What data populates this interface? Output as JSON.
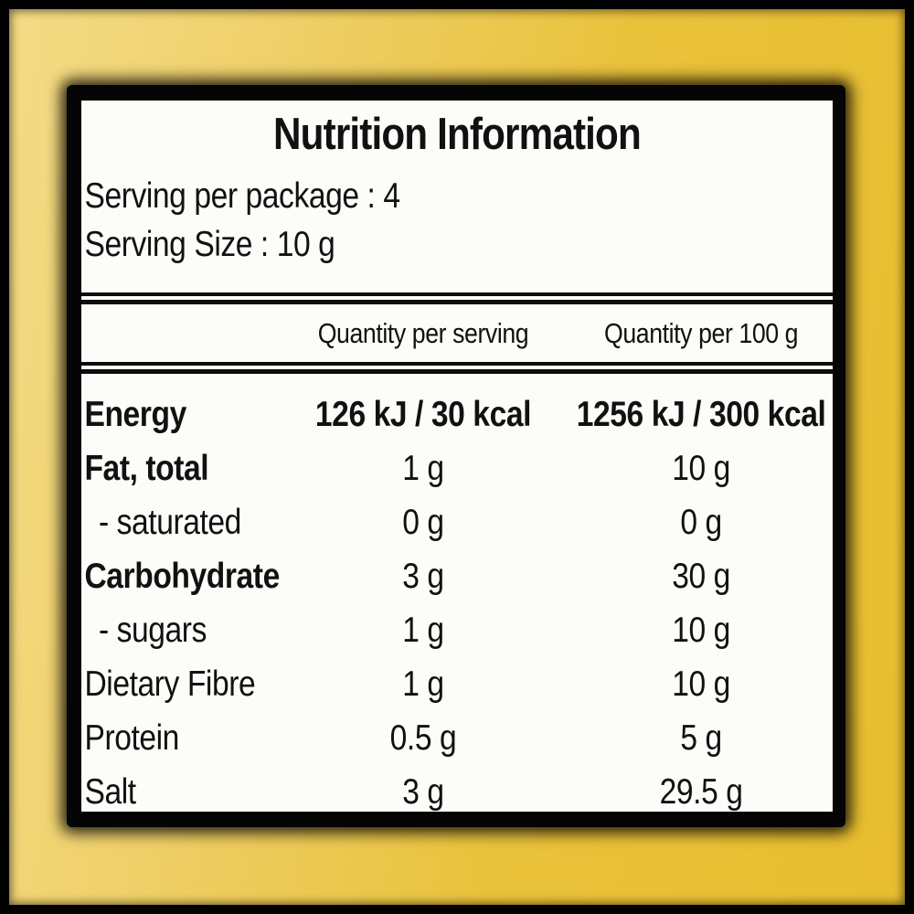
{
  "panel": {
    "title": "Nutrition Information",
    "serving_lines": [
      "Serving per package : 4",
      "Serving Size : 10 g"
    ],
    "columns": [
      "Quantity per serving",
      "Quantity per 100 g"
    ],
    "rows": [
      {
        "label": "Energy",
        "per_serving": "126 kJ / 30 kcal",
        "per_100g": "1256 kJ / 300 kcal",
        "bold": true,
        "bold_values": true,
        "indent": false
      },
      {
        "label": "Fat, total",
        "per_serving": "1 g",
        "per_100g": "10 g",
        "bold": true,
        "bold_values": false,
        "indent": false
      },
      {
        "label": "- saturated",
        "per_serving": "0 g",
        "per_100g": "0 g",
        "bold": false,
        "bold_values": false,
        "indent": true
      },
      {
        "label": "Carbohydrate",
        "per_serving": "3 g",
        "per_100g": "30 g",
        "bold": true,
        "bold_values": false,
        "indent": false
      },
      {
        "label": "- sugars",
        "per_serving": "1 g",
        "per_100g": "10 g",
        "bold": false,
        "bold_values": false,
        "indent": true
      },
      {
        "label": "Dietary Fibre",
        "per_serving": "1 g",
        "per_100g": "10 g",
        "bold": false,
        "bold_values": false,
        "indent": false
      },
      {
        "label": "Protein",
        "per_serving": "0.5 g",
        "per_100g": "5 g",
        "bold": false,
        "bold_values": false,
        "indent": false
      },
      {
        "label": "Salt",
        "per_serving": "3 g",
        "per_100g": "29.5 g",
        "bold": false,
        "bold_values": false,
        "indent": false
      }
    ]
  },
  "colors": {
    "frame": "#000000",
    "background_gold_light": "#f4dc86",
    "background_gold": "#e8be2e",
    "panel_border": "#050505",
    "panel_background": "#fcfcf9",
    "text": "#111111"
  }
}
